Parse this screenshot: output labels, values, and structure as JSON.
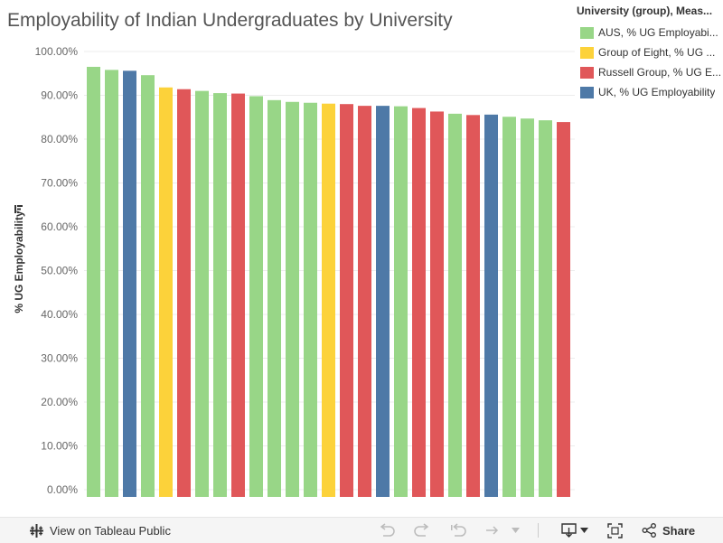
{
  "title": "Employability of Indian Undergraduates by University",
  "legend": {
    "title": "University (group), Meas...",
    "items": [
      {
        "label": "AUS, % UG Employabi...",
        "color": "#98d687"
      },
      {
        "label": "Group of Eight, % UG ...",
        "color": "#fcd23a"
      },
      {
        "label": "Russell Group, % UG E...",
        "color": "#e05759"
      },
      {
        "label": "UK, % UG Employability",
        "color": "#4e79a7"
      }
    ]
  },
  "toolbar": {
    "view_label": "View on Tableau Public",
    "share_label": "Share"
  },
  "chart_data": {
    "type": "bar",
    "ylabel": "% UG Employability",
    "ylim": [
      0,
      100
    ],
    "yticks": [
      "0.00%",
      "10.00%",
      "20.00%",
      "30.00%",
      "40.00%",
      "50.00%",
      "60.00%",
      "70.00%",
      "80.00%",
      "90.00%",
      "100.00%"
    ],
    "grid": true,
    "legend_position": "right",
    "values": [
      96.5,
      95.8,
      95.6,
      94.6,
      91.8,
      91.4,
      91.0,
      90.5,
      90.4,
      89.8,
      88.9,
      88.5,
      88.3,
      88.1,
      88.0,
      87.6,
      87.6,
      87.5,
      87.1,
      86.3,
      85.8,
      85.5,
      85.6,
      85.1,
      84.7,
      84.3,
      83.9
    ],
    "groups": [
      0,
      0,
      3,
      0,
      1,
      2,
      0,
      0,
      2,
      0,
      0,
      0,
      0,
      1,
      2,
      2,
      3,
      0,
      2,
      2,
      0,
      2,
      3,
      0,
      0,
      0,
      2
    ]
  }
}
